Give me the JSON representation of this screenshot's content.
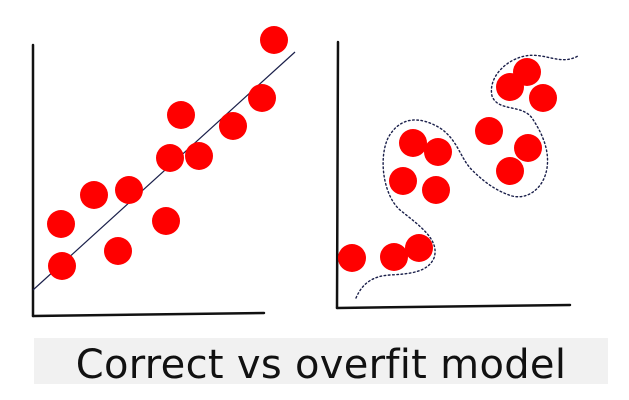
{
  "caption": "Correct vs overfit model",
  "colors": {
    "point": "#ff0000",
    "axis": "#111111",
    "fit_line": "#1a1f4a",
    "caption_band": "#f1f1f1"
  },
  "panels": [
    {
      "id": "correct-fit",
      "fit": "linear",
      "fit_line_style": "solid",
      "points": [
        [
          62,
          266
        ],
        [
          61,
          224
        ],
        [
          118,
          251
        ],
        [
          94,
          195
        ],
        [
          129,
          190
        ],
        [
          166,
          221
        ],
        [
          170,
          158
        ],
        [
          199,
          156
        ],
        [
          181,
          115
        ],
        [
          233,
          126
        ],
        [
          262,
          98
        ],
        [
          274,
          40
        ]
      ]
    },
    {
      "id": "overfit",
      "fit": "wiggly-through-every-point",
      "fit_line_style": "dotted",
      "points": [
        [
          352,
          258
        ],
        [
          394,
          257
        ],
        [
          419,
          248
        ],
        [
          403,
          181
        ],
        [
          413,
          143
        ],
        [
          436,
          190
        ],
        [
          438,
          152
        ],
        [
          489,
          131
        ],
        [
          510,
          171
        ],
        [
          528,
          148
        ],
        [
          510,
          87
        ],
        [
          527,
          72
        ],
        [
          543,
          98
        ]
      ]
    }
  ]
}
